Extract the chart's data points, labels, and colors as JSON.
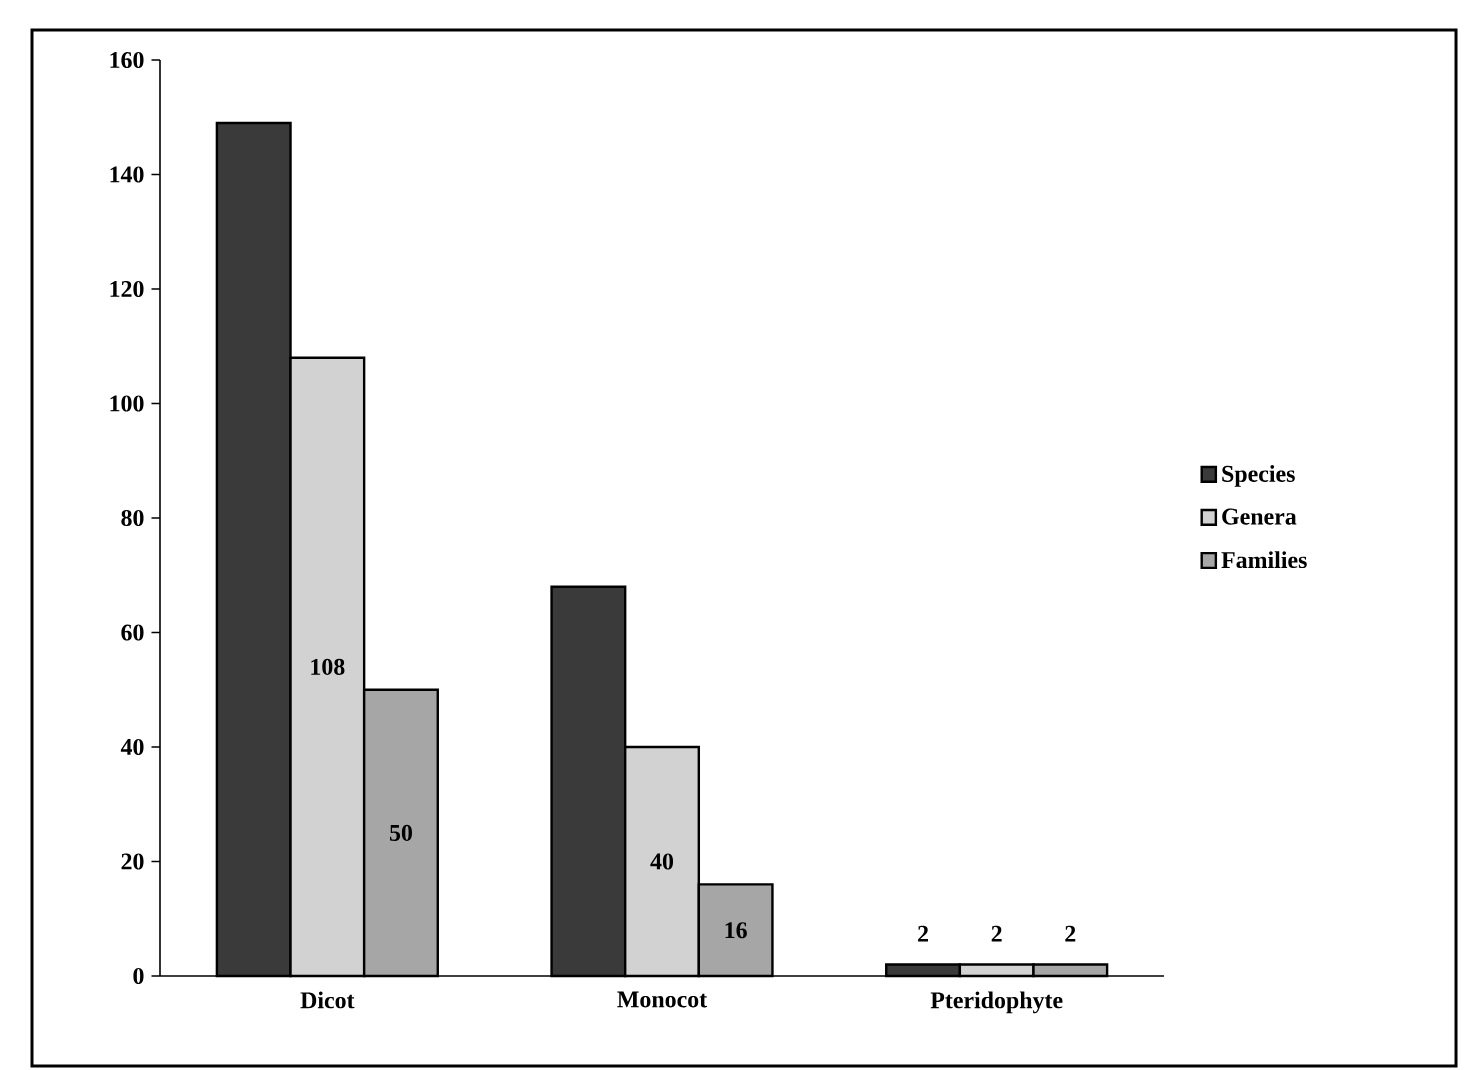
{
  "chart_data": {
    "type": "bar",
    "categories": [
      "Dicot",
      "Monocot",
      "Pteridophyte"
    ],
    "series": [
      {
        "name": "Species",
        "color": "#3a3a3a",
        "values": [
          149,
          68,
          2
        ],
        "value_labels": [
          null,
          null,
          "2"
        ]
      },
      {
        "name": "Genera",
        "color": "#d2d2d2",
        "values": [
          108,
          40,
          2
        ],
        "value_labels": [
          "108",
          "40",
          "2"
        ]
      },
      {
        "name": "Families",
        "color": "#a6a6a6",
        "values": [
          50,
          16,
          2
        ],
        "value_labels": [
          "50",
          "16",
          "2"
        ]
      }
    ],
    "ylim": [
      0,
      160
    ],
    "yticks": [
      0,
      20,
      40,
      60,
      80,
      100,
      120,
      140,
      160
    ],
    "legend": "right"
  }
}
